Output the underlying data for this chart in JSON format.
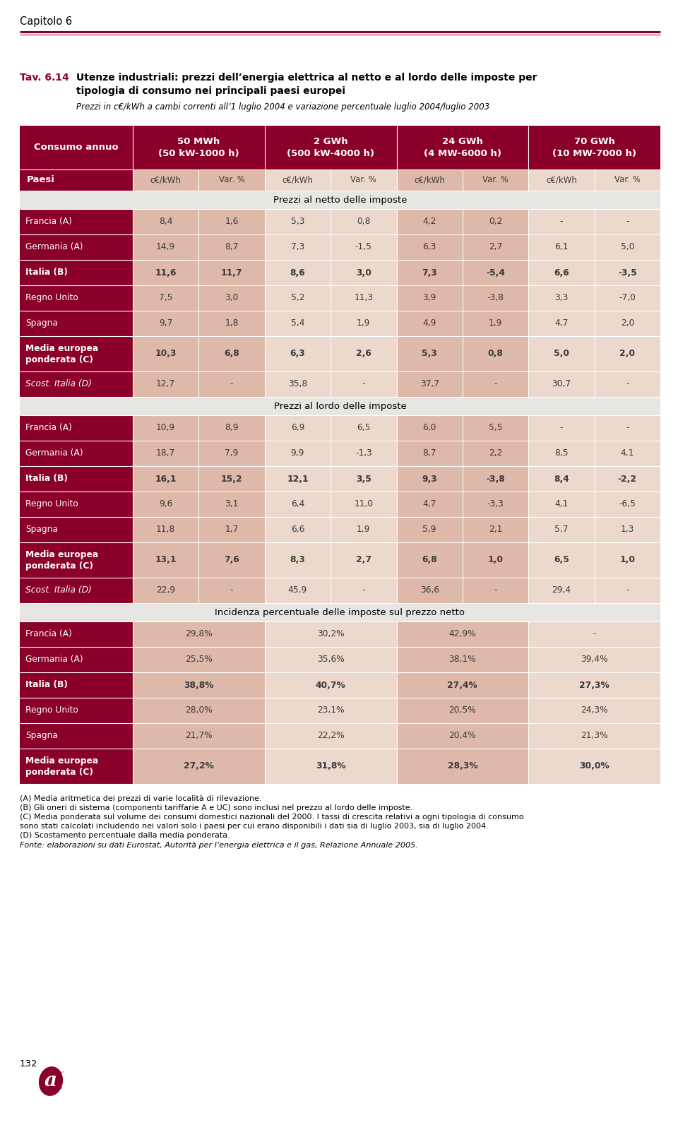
{
  "title_prefix": "Tav. 6.14",
  "title_bold": "Utenze industriali: prezzi dell’energia elettrica al netto e al lordo delle imposte per\ntipologia di consumo nei principali paesi europei",
  "title_italic": "Prezzi in c€/kWh a cambi correnti all’1 luglio 2004 e variazione percentuale luglio 2004/luglio 2003",
  "section1_title": "Prezzi al netto delle imposte",
  "section1_rows": [
    [
      "Francia (A)",
      "8,4",
      "1,6",
      "5,3",
      "0,8",
      "4,2",
      "0,2",
      "-",
      "-"
    ],
    [
      "Germania (A)",
      "14,9",
      "8,7",
      "7,3",
      "-1,5",
      "6,3",
      "2,7",
      "6,1",
      "5,0"
    ],
    [
      "Italia (B)",
      "11,6",
      "11,7",
      "8,6",
      "3,0",
      "7,3",
      "-5,4",
      "6,6",
      "-3,5"
    ],
    [
      "Regno Unito",
      "7,5",
      "3,0",
      "5,2",
      "11,3",
      "3,9",
      "-3,8",
      "3,3",
      "-7,0"
    ],
    [
      "Spagna",
      "9,7",
      "1,8",
      "5,4",
      "1,9",
      "4,9",
      "1,9",
      "4,7",
      "2,0"
    ],
    [
      "Media europea\nponderata (C)",
      "10,3",
      "6,8",
      "6,3",
      "2,6",
      "5,3",
      "0,8",
      "5,0",
      "2,0"
    ],
    [
      "Scost. Italia (D)",
      "12,7",
      "-",
      "35,8",
      "-",
      "37,7",
      "-",
      "30,7",
      "-"
    ]
  ],
  "section1_bold": [
    false,
    false,
    true,
    false,
    false,
    true,
    false
  ],
  "section1_italic": [
    false,
    false,
    false,
    false,
    false,
    false,
    true
  ],
  "section2_title": "Prezzi al lordo delle imposte",
  "section2_rows": [
    [
      "Francia (A)",
      "10,9",
      "8,9",
      "6,9",
      "6,5",
      "6,0",
      "5,5",
      "-",
      "-"
    ],
    [
      "Germania (A)",
      "18,7",
      "7,9",
      "9,9",
      "-1,3",
      "8,7",
      "2,2",
      "8,5",
      "4,1"
    ],
    [
      "Italia (B)",
      "16,1",
      "15,2",
      "12,1",
      "3,5",
      "9,3",
      "-3,8",
      "8,4",
      "-2,2"
    ],
    [
      "Regno Unito",
      "9,6",
      "3,1",
      "6,4",
      "11,0",
      "4,7",
      "-3,3",
      "4,1",
      "-6,5"
    ],
    [
      "Spagna",
      "11,8",
      "1,7",
      "6,6",
      "1,9",
      "5,9",
      "2,1",
      "5,7",
      "1,3"
    ],
    [
      "Media europea\nponderata (C)",
      "13,1",
      "7,6",
      "8,3",
      "2,7",
      "6,8",
      "1,0",
      "6,5",
      "1,0"
    ],
    [
      "Scost. Italia (D)",
      "22,9",
      "-",
      "45,9",
      "-",
      "36,6",
      "-",
      "29,4",
      "-"
    ]
  ],
  "section2_bold": [
    false,
    false,
    true,
    false,
    false,
    true,
    false
  ],
  "section2_italic": [
    false,
    false,
    false,
    false,
    false,
    false,
    true
  ],
  "section3_title": "Incidenza percentuale delle imposte sul prezzo netto",
  "section3_rows": [
    [
      "Francia (A)",
      "29,8%",
      "30,2%",
      "42,9%",
      "-"
    ],
    [
      "Germania (A)",
      "25,5%",
      "35,6%",
      "38,1%",
      "39,4%"
    ],
    [
      "Italia (B)",
      "38,8%",
      "40,7%",
      "27,4%",
      "27,3%"
    ],
    [
      "Regno Unito",
      "28,0%",
      "23,1%",
      "20,5%",
      "24,3%"
    ],
    [
      "Spagna",
      "21,7%",
      "22,2%",
      "20,4%",
      "21,3%"
    ],
    [
      "Media europea\nponderata (C)",
      "27,2%",
      "31,8%",
      "28,3%",
      "30,0%"
    ]
  ],
  "section3_bold": [
    false,
    false,
    true,
    false,
    false,
    true
  ],
  "footnotes": [
    "(A) Media aritmetica dei prezzi di varie località di rilevazione.",
    "(B) Gli oneri di sistema (componenti tariffarie A e UC) sono inclusi nel prezzo al lordo delle imposte.",
    "(C) Media ponderata sul volume dei consumi domestici nazionali del 2000. I tassi di crescita relativi a ogni tipologia di consumo",
    "sono stati calcolati includendo nei valori solo i paesi per cui erano disponibili i dati sia di luglio 2003, sia di luglio 2004.",
    "(D) Scostamento percentuale dalla media ponderata.",
    "Fonte: elaborazioni su dati Eurostat, Autorità per l’energia elettrica e il gas, Relazione Annuale 2005."
  ],
  "color_dark_red": "#8B0028",
  "color_light_pink": "#DEB8A8",
  "color_lighter_pink": "#EDD8CE",
  "color_section_bg": "#E8E6E3",
  "color_white": "#FFFFFF",
  "color_text_dark": "#3A3A3A"
}
